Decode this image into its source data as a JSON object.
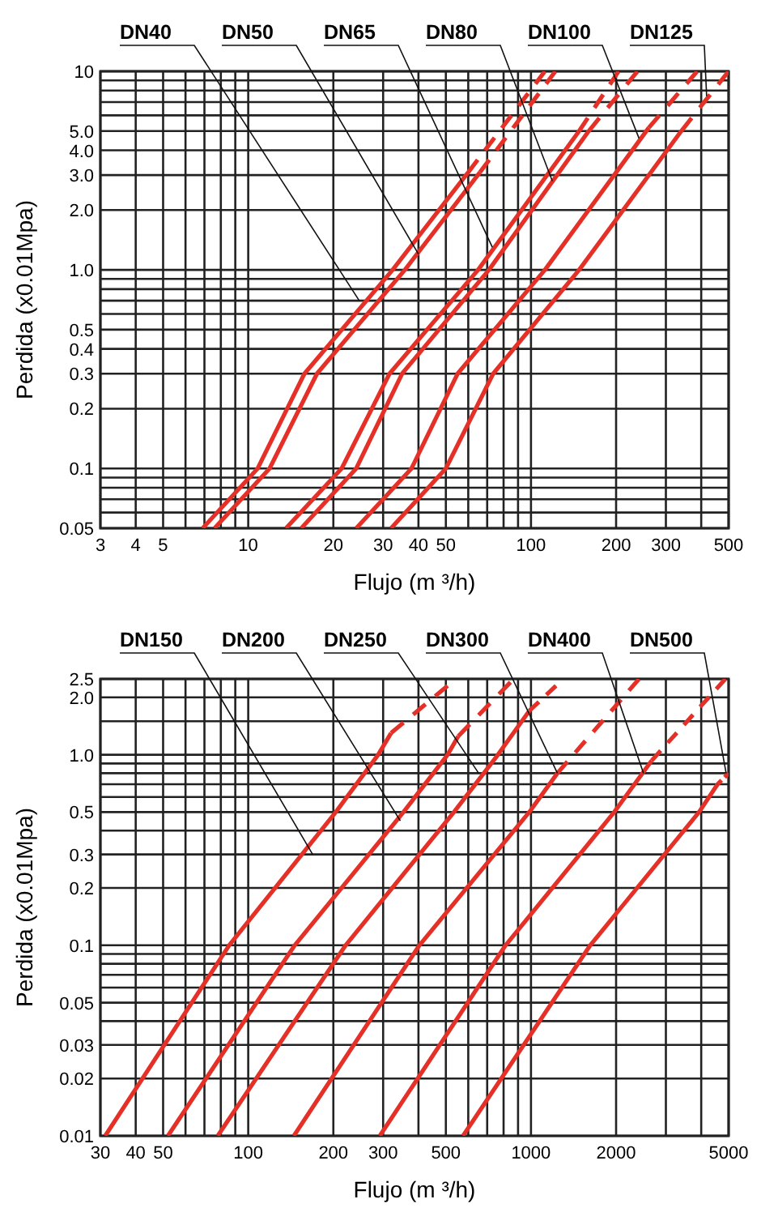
{
  "chart_data": [
    {
      "type": "line",
      "xlabel": "Flujo (m ³/h)",
      "ylabel": "Perdida (x0.01Mpa)",
      "log": "xy",
      "grid": true,
      "xlim": [
        3,
        500
      ],
      "ylim": [
        0.05,
        10
      ],
      "xticks": [
        3,
        4,
        5,
        {
          "value": 6,
          "label": null
        },
        {
          "value": 7,
          "label": null
        },
        {
          "value": 8,
          "label": null
        },
        {
          "value": 9,
          "label": null
        },
        10,
        20,
        30,
        40,
        50,
        {
          "value": 60,
          "label": null
        },
        {
          "value": 70,
          "label": null
        },
        {
          "value": 80,
          "label": null
        },
        {
          "value": 90,
          "label": null
        },
        100,
        200,
        300,
        {
          "value": 400,
          "label": null
        },
        500
      ],
      "yticks": [
        0.05,
        {
          "value": 0.06,
          "label": null
        },
        {
          "value": 0.07,
          "label": null
        },
        {
          "value": 0.08,
          "label": null
        },
        {
          "value": 0.09,
          "label": null
        },
        0.1,
        0.2,
        0.3,
        0.4,
        0.5,
        {
          "value": 0.6,
          "label": null
        },
        {
          "value": 0.7,
          "label": null
        },
        {
          "value": 0.8,
          "label": null
        },
        {
          "value": 0.9,
          "label": null
        },
        {
          "value": 1,
          "label": "1.0"
        },
        {
          "value": 2,
          "label": "2.0"
        },
        {
          "value": 3,
          "label": "3.0"
        },
        {
          "value": 4,
          "label": "4.0"
        },
        {
          "value": 5,
          "label": "5.0"
        },
        {
          "value": 6,
          "label": null
        },
        {
          "value": 7,
          "label": null
        },
        {
          "value": 8,
          "label": null
        },
        {
          "value": 9,
          "label": null
        },
        10
      ],
      "series": [
        {
          "color": "#e53027",
          "line_style": "solid",
          "x": [
            6.9,
            10.8,
            15.8,
            32.4,
            60
          ],
          "values": [
            0.05,
            0.1,
            0.3,
            1,
            3.1
          ]
        },
        {
          "color": "#e53027",
          "line_style": "dashed",
          "x": [
            60,
            112
          ],
          "values": [
            3.1,
            10
          ]
        },
        {
          "color": "#e53027",
          "line_style": "solid",
          "x": [
            7.6,
            11.9,
            17.5,
            35.8,
            66
          ],
          "values": [
            0.05,
            0.1,
            0.3,
            1,
            3.1
          ]
        },
        {
          "color": "#e53027",
          "line_style": "dashed",
          "x": [
            66,
            122
          ],
          "values": [
            3.1,
            10
          ]
        },
        {
          "color": "#e53027",
          "line_style": "solid",
          "x": [
            13.6,
            21.4,
            31.6,
            65,
            148
          ],
          "values": [
            0.05,
            0.1,
            0.3,
            1,
            5
          ]
        },
        {
          "color": "#e53027",
          "line_style": "dashed",
          "x": [
            148,
            204
          ],
          "values": [
            5,
            10
          ]
        },
        {
          "color": "#e53027",
          "line_style": "solid",
          "x": [
            15.4,
            24.1,
            35,
            71,
            160
          ],
          "values": [
            0.05,
            0.1,
            0.3,
            1,
            5
          ]
        },
        {
          "color": "#e53027",
          "line_style": "dashed",
          "x": [
            160,
            238
          ],
          "values": [
            5,
            10
          ]
        },
        {
          "color": "#e53027",
          "line_style": "solid",
          "x": [
            24.1,
            37.8,
            55,
            112,
            261
          ],
          "values": [
            0.05,
            0.1,
            0.3,
            1,
            5.2
          ]
        },
        {
          "color": "#e53027",
          "line_style": "dashed",
          "x": [
            261,
            387
          ],
          "values": [
            5.2,
            10
          ]
        },
        {
          "color": "#e53027",
          "line_style": "solid",
          "x": [
            32,
            50,
            73.5,
            148,
            340
          ],
          "values": [
            0.05,
            0.1,
            0.3,
            1,
            5
          ]
        },
        {
          "color": "#e53027",
          "line_style": "dashed",
          "x": [
            340,
            500
          ],
          "values": [
            5,
            10
          ]
        }
      ],
      "annotations": [
        {
          "text": "DN40",
          "x": 24.7,
          "y": 0.7
        },
        {
          "text": "DN50",
          "x": 40,
          "y": 1.2
        },
        {
          "text": "DN65",
          "x": 73,
          "y": 1.3
        },
        {
          "text": "DN80",
          "x": 119,
          "y": 2.8
        },
        {
          "text": "DN100",
          "x": 241,
          "y": 4.6
        },
        {
          "text": "DN125",
          "x": 418,
          "y": 7.5
        }
      ]
    },
    {
      "type": "line",
      "xlabel": "Flujo (m ³/h)",
      "ylabel": "Perdida (x0.01Mpa)",
      "log": "xy",
      "grid": true,
      "xlim": [
        30,
        5000
      ],
      "ylim": [
        0.01,
        2.5
      ],
      "xticks": [
        30,
        40,
        50,
        {
          "value": 60,
          "label": null
        },
        {
          "value": 70,
          "label": null
        },
        {
          "value": 80,
          "label": null
        },
        {
          "value": 90,
          "label": null
        },
        100,
        200,
        300,
        {
          "value": 400,
          "label": null
        },
        500,
        {
          "value": 600,
          "label": null
        },
        {
          "value": 700,
          "label": null
        },
        {
          "value": 800,
          "label": null
        },
        {
          "value": 900,
          "label": null
        },
        1000,
        2000,
        {
          "value": 3000,
          "label": null
        },
        {
          "value": 4000,
          "label": null
        },
        5000
      ],
      "yticks": [
        0.01,
        0.02,
        0.03,
        {
          "value": 0.04,
          "label": null
        },
        0.05,
        {
          "value": 0.06,
          "label": null
        },
        {
          "value": 0.07,
          "label": null
        },
        {
          "value": 0.08,
          "label": null
        },
        {
          "value": 0.09,
          "label": null
        },
        0.1,
        0.2,
        0.3,
        {
          "value": 0.4,
          "label": null
        },
        0.5,
        {
          "value": 0.6,
          "label": null
        },
        {
          "value": 0.7,
          "label": null
        },
        {
          "value": 0.8,
          "label": null
        },
        {
          "value": 0.9,
          "label": null
        },
        {
          "value": 1,
          "label": "1.0"
        },
        {
          "value": 1.5,
          "label": null
        },
        {
          "value": 2,
          "label": "2.0"
        },
        2.5
      ],
      "series": [
        {
          "color": "#e53027",
          "line_style": "solid",
          "x": [
            31.2,
            85.6,
            204,
            288,
            320
          ],
          "values": [
            0.01,
            0.1,
            0.5,
            1,
            1.3
          ]
        },
        {
          "color": "#e53027",
          "line_style": "dashed",
          "x": [
            320,
            507
          ],
          "values": [
            1.3,
            2.3
          ]
        },
        {
          "color": "#e53027",
          "line_style": "solid",
          "x": [
            52,
            146,
            354,
            507,
            553
          ],
          "values": [
            0.01,
            0.1,
            0.5,
            1,
            1.25
          ]
        },
        {
          "color": "#e53027",
          "line_style": "dashed",
          "x": [
            553,
            846
          ],
          "values": [
            1.25,
            2.4
          ]
        },
        {
          "color": "#e53027",
          "line_style": "solid",
          "x": [
            78,
            221,
            534,
            764,
            986
          ],
          "values": [
            0.01,
            0.1,
            0.5,
            1,
            1.7
          ]
        },
        {
          "color": "#e53027",
          "line_style": "dashed",
          "x": [
            986,
            1226
          ],
          "values": [
            1.7,
            2.3
          ]
        },
        {
          "color": "#e53027",
          "line_style": "solid",
          "x": [
            145,
            403,
            986,
            1240
          ],
          "values": [
            0.01,
            0.1,
            0.5,
            0.8
          ]
        },
        {
          "color": "#e53027",
          "line_style": "dashed",
          "x": [
            1240,
            2410
          ],
          "values": [
            0.8,
            2.5
          ]
        },
        {
          "color": "#e53027",
          "line_style": "solid",
          "x": [
            292,
            813,
            1970,
            2670
          ],
          "values": [
            0.01,
            0.1,
            0.5,
            0.93
          ]
        },
        {
          "color": "#e53027",
          "line_style": "dashed",
          "x": [
            2670,
            4870
          ],
          "values": [
            0.93,
            2.5
          ]
        },
        {
          "color": "#e53027",
          "line_style": "solid",
          "x": [
            575,
            1620,
            3930,
            4570
          ],
          "values": [
            0.01,
            0.1,
            0.5,
            0.7
          ]
        },
        {
          "color": "#e53027",
          "line_style": "dashed",
          "x": [
            4570,
            5000
          ],
          "values": [
            0.7,
            0.8
          ]
        }
      ],
      "annotations": [
        {
          "text": "DN150",
          "x": 169,
          "y": 0.3
        },
        {
          "text": "DN200",
          "x": 345,
          "y": 0.45
        },
        {
          "text": "DN250",
          "x": 653,
          "y": 0.8
        },
        {
          "text": "DN300",
          "x": 1240,
          "y": 0.8
        },
        {
          "text": "DN400",
          "x": 2500,
          "y": 0.8
        },
        {
          "text": "DN500",
          "x": 4900,
          "y": 0.8
        }
      ]
    }
  ]
}
